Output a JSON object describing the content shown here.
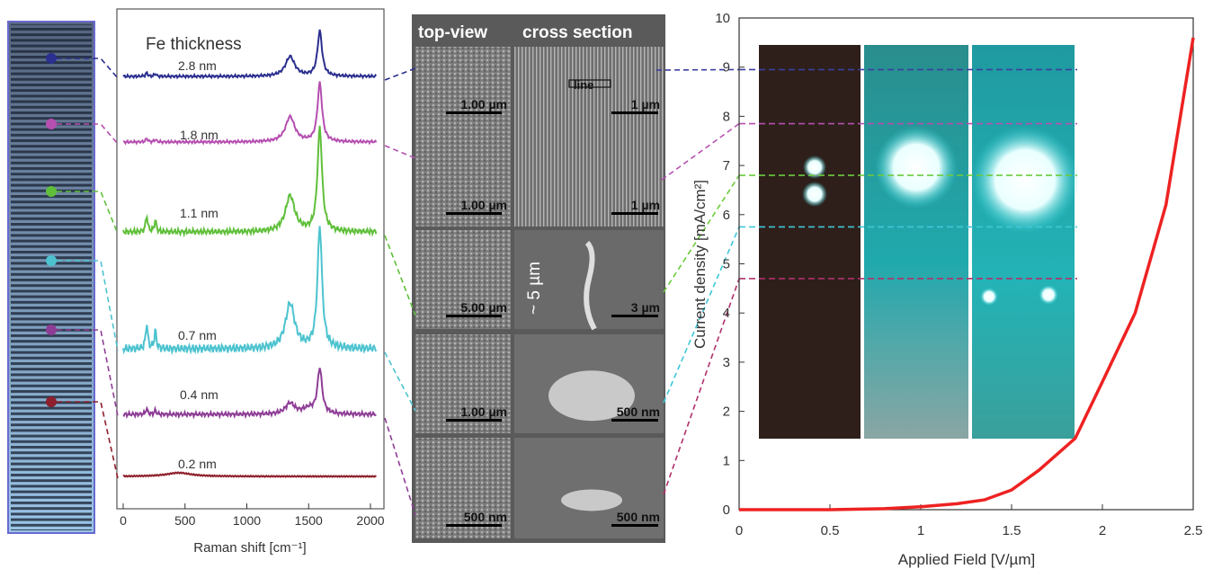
{
  "raman": {
    "title": "Fe thickness",
    "xlabel": "Raman shift [cm⁻¹]",
    "xticks": [
      "0",
      "500",
      "1000",
      "1500",
      "2000"
    ],
    "traces": [
      {
        "label": "2.8 nm",
        "color": "#2b2f8f"
      },
      {
        "label": "1.8 nm",
        "color": "#b54fb0"
      },
      {
        "label": "1.1 nm",
        "color": "#5fbf3a"
      },
      {
        "label": "0.7 nm",
        "color": "#4cc3cf"
      },
      {
        "label": "0.4 nm",
        "color": "#8e3d96"
      },
      {
        "label": "0.2 nm",
        "color": "#8e1f2c"
      }
    ]
  },
  "sem": {
    "header_left": "top-view",
    "header_right": "cross section",
    "line_label": "line",
    "height_label": "~ 5 µm",
    "rows": [
      {
        "left_scale": "1.00 µm",
        "right_scale": "1 µm"
      },
      {
        "left_scale": "1.00 µm",
        "right_scale": "1 µm"
      },
      {
        "left_scale": "5.00 µm",
        "right_scale": "3 µm"
      },
      {
        "left_scale": "1.00 µm",
        "right_scale": "500 nm"
      },
      {
        "left_scale": "500 nm",
        "right_scale": "500 nm"
      }
    ]
  },
  "chart_data": {
    "type": "line",
    "xlabel": "Applied Field [V/µm]",
    "ylabel": "Current density [mA/cm²]",
    "xlim": [
      0,
      2.5
    ],
    "ylim": [
      0,
      10
    ],
    "xticks": [
      "0",
      "0.5",
      "1",
      "1.5",
      "2",
      "2.5"
    ],
    "yticks": [
      "0",
      "1",
      "2",
      "3",
      "4",
      "5",
      "6",
      "7",
      "8",
      "9",
      "10"
    ],
    "series": [
      {
        "color": "#ee2222",
        "x": [
          0,
          0.5,
          0.8,
          1.0,
          1.2,
          1.35,
          1.5,
          1.65,
          1.85,
          2.0,
          2.18,
          2.35,
          2.5
        ],
        "y": [
          0,
          0,
          0.02,
          0.06,
          0.12,
          0.2,
          0.4,
          0.8,
          1.45,
          2.6,
          4.0,
          6.2,
          9.6
        ]
      }
    ],
    "levels": [
      {
        "y": 8.95,
        "color": "#3a3fa0"
      },
      {
        "y": 7.85,
        "color": "#b54fb0"
      },
      {
        "y": 6.8,
        "color": "#6acc3c"
      },
      {
        "y": 5.75,
        "color": "#3ec7d8"
      },
      {
        "y": 4.7,
        "color": "#b0306a"
      }
    ]
  }
}
